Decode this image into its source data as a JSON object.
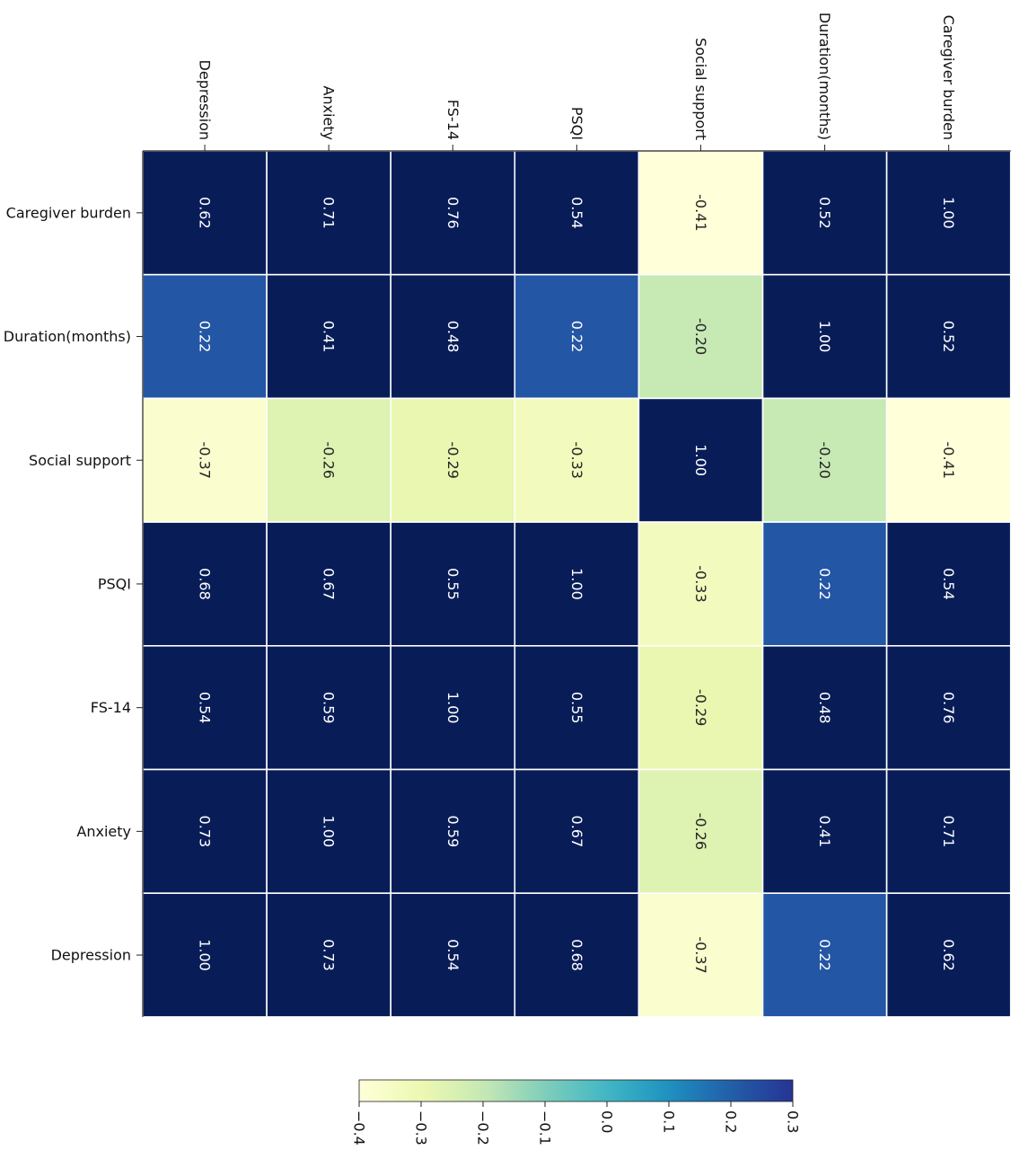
{
  "chart_data": {
    "type": "heatmap",
    "columns": [
      "Depression",
      "Anxiety",
      "FS-14",
      "PSQI",
      "Social support",
      "Duration(months)",
      "Caregiver burden"
    ],
    "rows": [
      "Caregiver burden",
      "Duration(months)",
      "Social support",
      "PSQI",
      "FS-14",
      "Anxiety",
      "Depression"
    ],
    "values": [
      [
        0.62,
        0.71,
        0.76,
        0.54,
        -0.41,
        0.52,
        1.0
      ],
      [
        0.22,
        0.41,
        0.48,
        0.22,
        -0.2,
        1.0,
        0.52
      ],
      [
        -0.37,
        -0.26,
        -0.29,
        -0.33,
        1.0,
        -0.2,
        -0.41
      ],
      [
        0.68,
        0.67,
        0.55,
        1.0,
        -0.33,
        0.22,
        0.54
      ],
      [
        0.54,
        0.59,
        1.0,
        0.55,
        -0.29,
        0.48,
        0.76
      ],
      [
        0.73,
        1.0,
        0.59,
        0.67,
        -0.26,
        0.41,
        0.71
      ],
      [
        1.0,
        0.73,
        0.54,
        0.68,
        -0.37,
        0.22,
        0.62
      ]
    ],
    "value_format": "2 decimals",
    "colormap": "YlGnBu",
    "vmin": -0.4,
    "vmax": 0.3,
    "colorbar_ticks": [
      "-0.4",
      "-0.3",
      "-0.2",
      "-0.1",
      "0.0",
      "0.1",
      "0.2",
      "0.3"
    ],
    "colorbar_placement": "bottom",
    "text_colors": {
      "dark_cells": "#ffffff",
      "light_cells": "#262626"
    }
  }
}
